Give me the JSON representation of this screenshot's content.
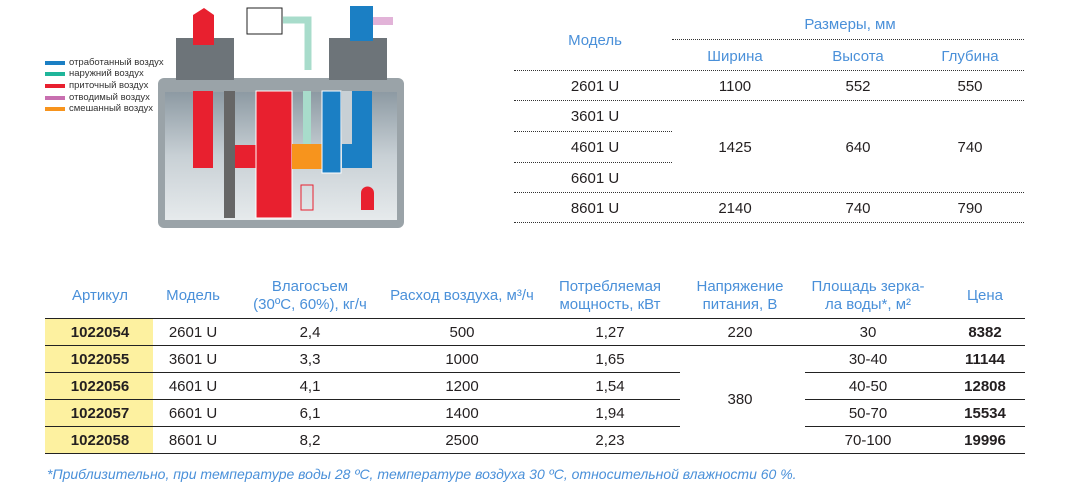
{
  "legend": [
    {
      "label": "отработанный воздух",
      "color": "#1b7fc4"
    },
    {
      "label": "наружний воздух",
      "color": "#1fb59a"
    },
    {
      "label": "приточный воздух",
      "color": "#e8202f"
    },
    {
      "label": "отводимый воздух",
      "color": "#c86fb0"
    },
    {
      "label": "смешанный воздух",
      "color": "#f7941d"
    }
  ],
  "dimensions": {
    "model_header": "Модель",
    "group_header": "Размеры, мм",
    "columns": [
      "Ширина",
      "Высота",
      "Глубина"
    ],
    "models": [
      "2601 U",
      "3601 U",
      "4601 U",
      "6601 U",
      "8601 U"
    ],
    "rows": [
      {
        "width": "1100",
        "height": "552",
        "depth": "550"
      },
      {
        "width": "1425",
        "height": "640",
        "depth": "740"
      },
      {
        "width": "2140",
        "height": "740",
        "depth": "790"
      }
    ]
  },
  "specs": {
    "headers": [
      "Артикул",
      "Модель",
      "Влагосъем (30ºC, 60%), кг/ч",
      "Расход воздуха, м³/ч",
      "Потребляемая мощность, кВт",
      "Напряжение питания, В",
      "Площадь зеркала воды*, м²",
      "Цена"
    ],
    "header_lines": [
      [
        "Артикул"
      ],
      [
        "Модель"
      ],
      [
        "Влагосъем",
        "(30ºC, 60%), кг/ч"
      ],
      [
        "Расход воздуха, м³/ч"
      ],
      [
        "Потребляемая",
        "мощность, кВт"
      ],
      [
        "Напряжение",
        "питания, В"
      ],
      [
        "Площадь зерка-",
        "ла воды*, м²"
      ],
      [
        "Цена"
      ]
    ],
    "rows": [
      {
        "article": "1022054",
        "model": "2601 U",
        "moisture": "2,4",
        "airflow": "500",
        "power": "1,27",
        "area": "30",
        "price": "8382"
      },
      {
        "article": "1022055",
        "model": "3601 U",
        "moisture": "3,3",
        "airflow": "1000",
        "power": "1,65",
        "area": "30-40",
        "price": "11144"
      },
      {
        "article": "1022056",
        "model": "4601 U",
        "moisture": "4,1",
        "airflow": "1200",
        "power": "1,54",
        "area": "40-50",
        "price": "12808"
      },
      {
        "article": "1022057",
        "model": "6601 U",
        "moisture": "6,1",
        "airflow": "1400",
        "power": "1,94",
        "area": "50-70",
        "price": "15534"
      },
      {
        "article": "1022058",
        "model": "8601 U",
        "moisture": "8,2",
        "airflow": "2500",
        "power": "2,23",
        "area": "70-100",
        "price": "19996"
      }
    ],
    "voltage_220": "220",
    "voltage_380": "380"
  },
  "footnote": "*Приблизительно, при температуре воды 28 ºC, температуре воздуха 30 ºC, относительной влажности 60 %.",
  "colors": {
    "header_text": "#4a90d9",
    "article_highlight": "#fdf1a0"
  }
}
